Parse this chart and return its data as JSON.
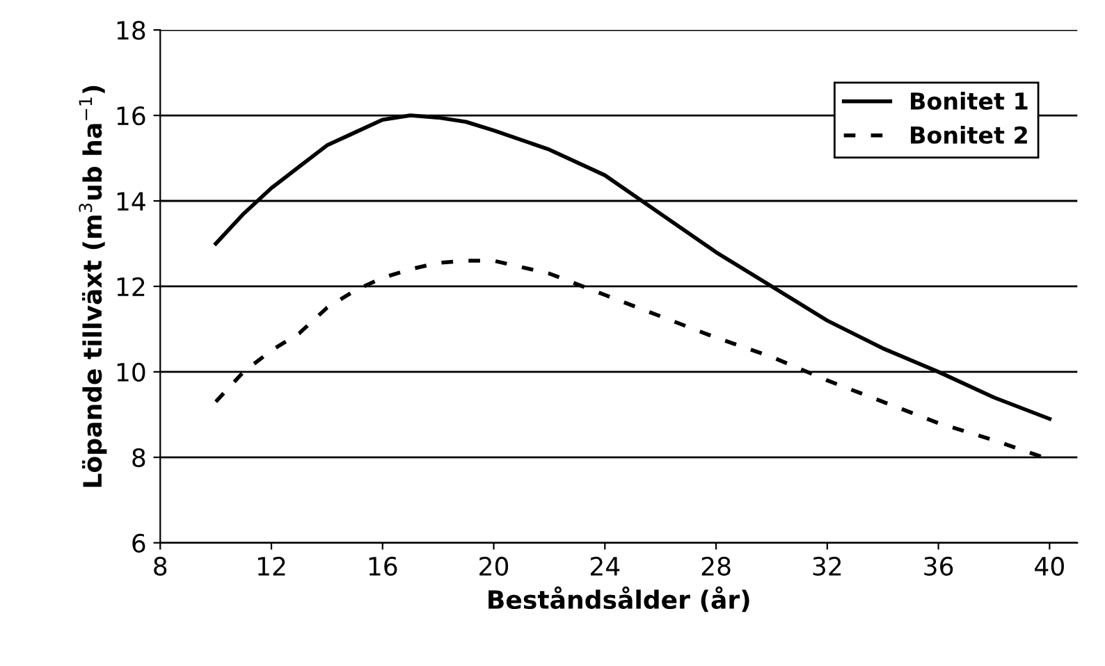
{
  "chart_data": {
    "type": "line",
    "xlabel": "Beståndsålder (år)",
    "ylabel": "Löpande tillväxt (m$^{3}$ub ha$^{−1}$)",
    "xlim": [
      8,
      41
    ],
    "xticks": [
      8,
      12,
      16,
      20,
      24,
      28,
      32,
      36,
      40
    ],
    "ylim": [
      6,
      18
    ],
    "yticks": [
      6,
      8,
      10,
      12,
      14,
      16,
      18
    ],
    "grid": "y",
    "legend": "top right",
    "marker": "none",
    "series": [
      {
        "name": "Bonitet 1",
        "color": "#000000",
        "line_style": "solid",
        "x": [
          10,
          11,
          12,
          13,
          14,
          15,
          16,
          17,
          18,
          19,
          20,
          22,
          24,
          26,
          28,
          30,
          32,
          34,
          36,
          38,
          40
        ],
        "values": [
          13.0,
          13.7,
          14.3,
          14.8,
          15.3,
          15.6,
          15.9,
          16.0,
          15.95,
          15.85,
          15.65,
          15.2,
          14.6,
          13.7,
          12.8,
          12.0,
          11.2,
          10.55,
          10.0,
          9.4,
          8.9
        ]
      },
      {
        "name": "Bonitet 2",
        "color": "#000000",
        "line_style": "dotted",
        "x": [
          10,
          11,
          12,
          13,
          14,
          15,
          16,
          17,
          18,
          19,
          20,
          21,
          22,
          24,
          26,
          28,
          30,
          32,
          34,
          36,
          38,
          40
        ],
        "values": [
          9.3,
          10.0,
          10.5,
          10.9,
          11.5,
          11.9,
          12.2,
          12.4,
          12.55,
          12.6,
          12.6,
          12.45,
          12.3,
          11.8,
          11.3,
          10.8,
          10.35,
          9.8,
          9.3,
          8.8,
          8.4,
          7.95
        ]
      }
    ]
  }
}
